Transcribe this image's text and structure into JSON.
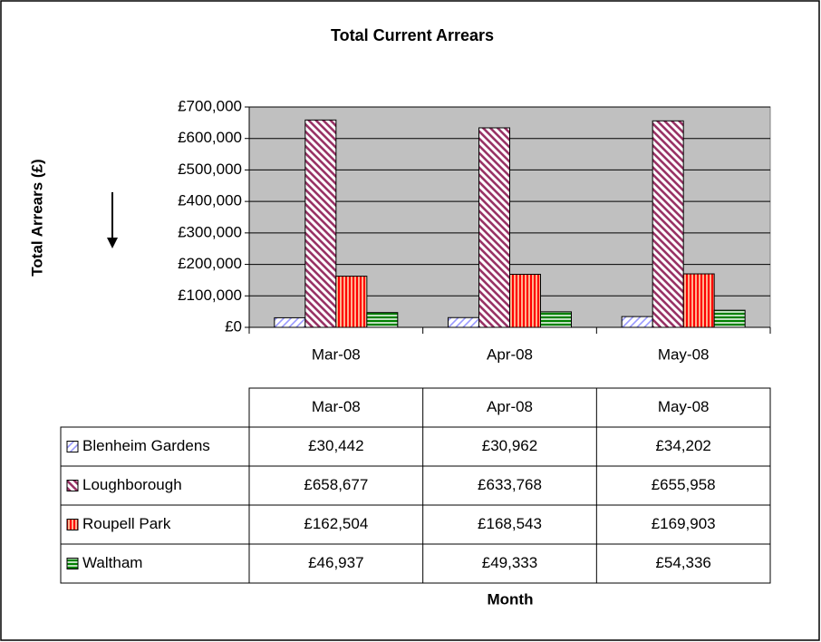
{
  "chart_data": {
    "type": "bar",
    "title": "Total Current Arrears",
    "x_label": "Month",
    "y_label": "Total Arrears (£)",
    "categories": [
      "Mar-08",
      "Apr-08",
      "May-08"
    ],
    "series": [
      {
        "name": "Blenheim Gardens",
        "color": "#9999ff",
        "values": [
          30442,
          30962,
          34202
        ],
        "value_labels": [
          "£30,442",
          "£30,962",
          "£34,202"
        ]
      },
      {
        "name": "Loughborough",
        "color": "#993366",
        "values": [
          658677,
          633768,
          655958
        ],
        "value_labels": [
          "£658,677",
          "£633,768",
          "£655,958"
        ]
      },
      {
        "name": "Roupell Park",
        "color": "#ff0000",
        "values": [
          162504,
          168543,
          169903
        ],
        "value_labels": [
          "£162,504",
          "£168,543",
          "£169,903"
        ]
      },
      {
        "name": "Waltham",
        "color": "#008000",
        "values": [
          46937,
          49333,
          54336
        ],
        "value_labels": [
          "£46,937",
          "£49,333",
          "£54,336"
        ]
      }
    ],
    "ylim": [
      0,
      700000
    ],
    "yticks": [
      {
        "value": 0,
        "label": "£0"
      },
      {
        "value": 100000,
        "label": "£100,000"
      },
      {
        "value": 200000,
        "label": "£200,000"
      },
      {
        "value": 300000,
        "label": "£300,000"
      },
      {
        "value": 400000,
        "label": "£400,000"
      },
      {
        "value": 500000,
        "label": "£500,000"
      },
      {
        "value": 600000,
        "label": "£600,000"
      },
      {
        "value": 700000,
        "label": "£700,000"
      }
    ],
    "grid": true,
    "data_table": true
  }
}
